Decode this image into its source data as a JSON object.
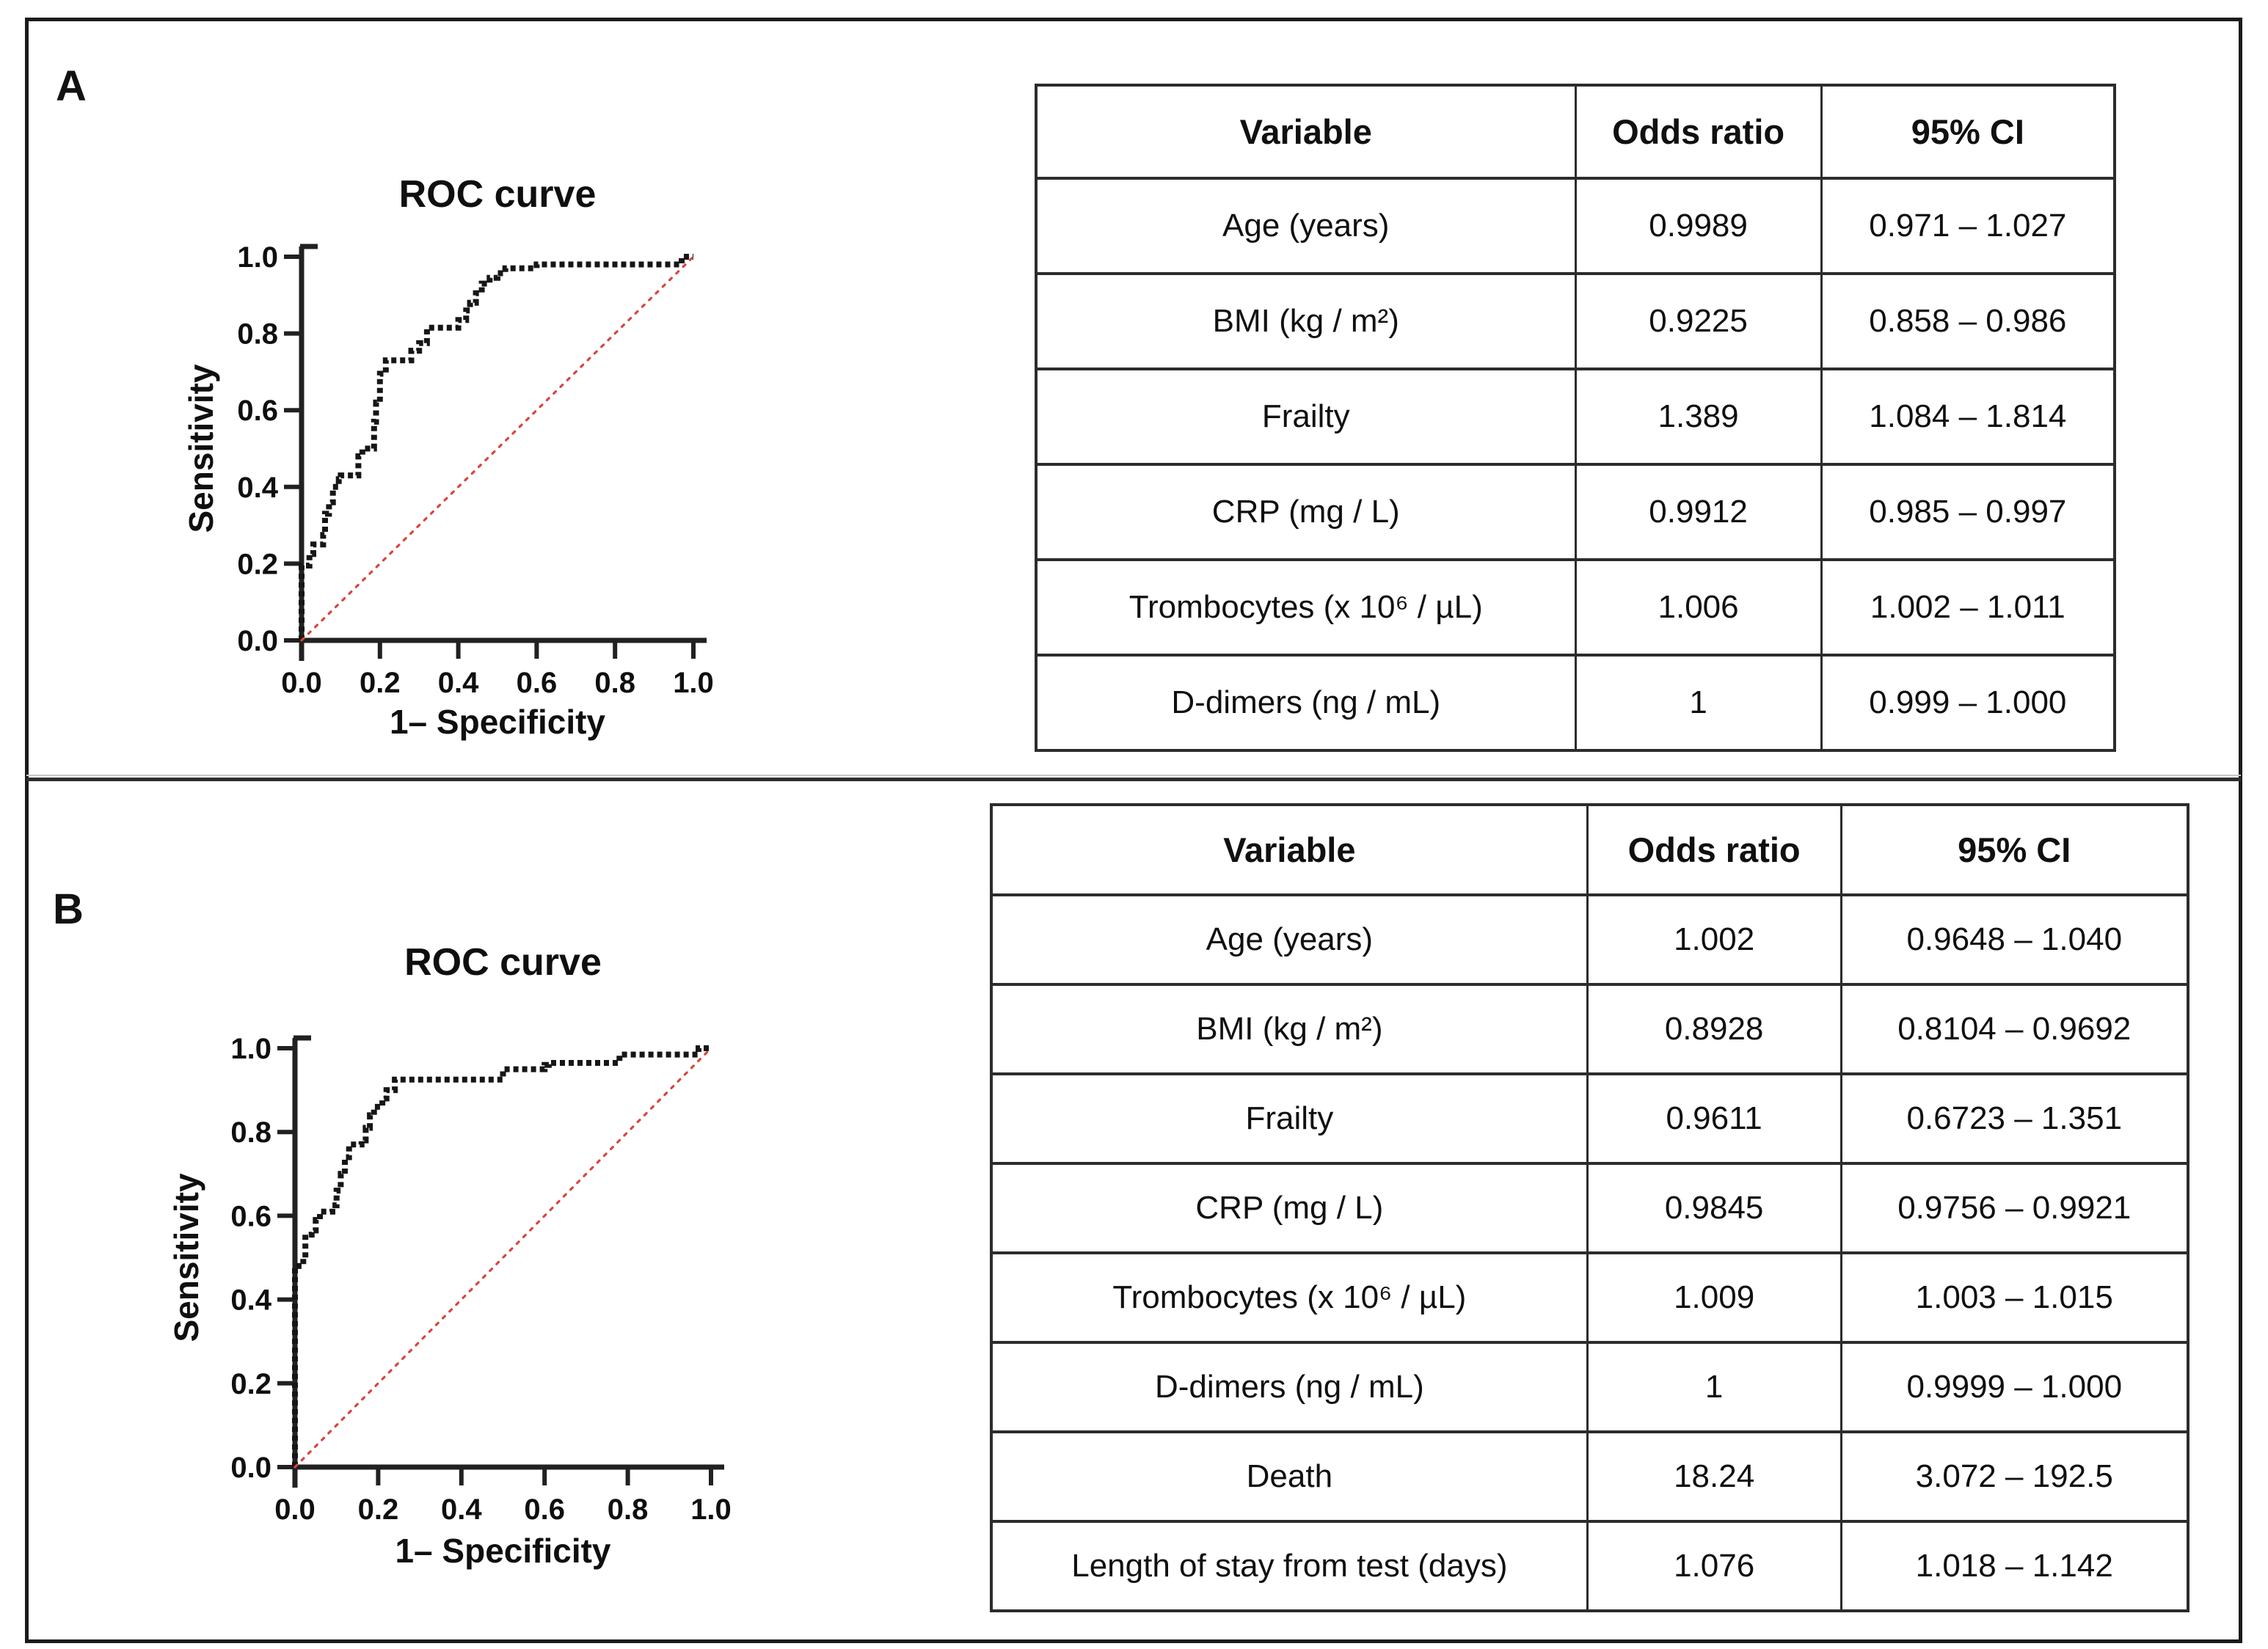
{
  "figure": {
    "panels": [
      {
        "label": "A",
        "table": {
          "headers": [
            "Variable",
            "Odds ratio",
            "95% CI"
          ],
          "rows": [
            [
              "Age (years)",
              "0.9989",
              "0.971 – 1.027"
            ],
            [
              "BMI (kg / m²)",
              "0.9225",
              "0.858 – 0.986"
            ],
            [
              "Frailty",
              "1.389",
              "1.084 – 1.814"
            ],
            [
              "CRP (mg / L)",
              "0.9912",
              "0.985 – 0.997"
            ],
            [
              "Trombocytes (x 10⁶ / µL)",
              "1.006",
              "1.002 – 1.011"
            ],
            [
              "D-dimers (ng / mL)",
              "1",
              "0.999 – 1.000"
            ]
          ]
        }
      },
      {
        "label": "B",
        "table": {
          "headers": [
            "Variable",
            "Odds ratio",
            "95% CI"
          ],
          "rows": [
            [
              "Age (years)",
              "1.002",
              "0.9648 – 1.040"
            ],
            [
              "BMI (kg / m²)",
              "0.8928",
              "0.8104 – 0.9692"
            ],
            [
              "Frailty",
              "0.9611",
              "0.6723 – 1.351"
            ],
            [
              "CRP (mg / L)",
              "0.9845",
              "0.9756 – 0.9921"
            ],
            [
              "Trombocytes (x 10⁶ / µL)",
              "1.009",
              "1.003 – 1.015"
            ],
            [
              "D-dimers (ng / mL)",
              "1",
              "0.9999 – 1.000"
            ],
            [
              "Death",
              "18.24",
              "3.072 – 192.5"
            ],
            [
              "Length of stay from test (days)",
              "1.076",
              "1.018 – 1.142"
            ]
          ]
        }
      }
    ]
  },
  "chart_data": [
    {
      "type": "line",
      "panel": "A",
      "title": "ROC curve",
      "xlabel": "1– Specificity",
      "ylabel": "Sensitivity",
      "xlim": [
        0,
        1
      ],
      "ylim": [
        0,
        1
      ],
      "xtick_labels": [
        "0.0",
        "0.2",
        "0.4",
        "0.6",
        "0.8",
        "1.0"
      ],
      "ytick_labels": [
        "0.0",
        "0.2",
        "0.4",
        "0.6",
        "0.8",
        "1.0"
      ],
      "grid": false,
      "legend": null,
      "series": [
        {
          "name": "ROC staircase",
          "style": "dotted-step",
          "color": "#161616",
          "points": [
            [
              0,
              0
            ],
            [
              0,
              0.195
            ],
            [
              0.02,
              0.195
            ],
            [
              0.02,
              0.225
            ],
            [
              0.03,
              0.225
            ],
            [
              0.03,
              0.25
            ],
            [
              0.055,
              0.25
            ],
            [
              0.055,
              0.275
            ],
            [
              0.06,
              0.275
            ],
            [
              0.06,
              0.33
            ],
            [
              0.07,
              0.33
            ],
            [
              0.07,
              0.36
            ],
            [
              0.08,
              0.36
            ],
            [
              0.08,
              0.4
            ],
            [
              0.095,
              0.4
            ],
            [
              0.095,
              0.42
            ],
            [
              0.1,
              0.42
            ],
            [
              0.1,
              0.43
            ],
            [
              0.145,
              0.43
            ],
            [
              0.145,
              0.48
            ],
            [
              0.155,
              0.48
            ],
            [
              0.155,
              0.5
            ],
            [
              0.185,
              0.5
            ],
            [
              0.185,
              0.57
            ],
            [
              0.19,
              0.57
            ],
            [
              0.19,
              0.62
            ],
            [
              0.2,
              0.62
            ],
            [
              0.2,
              0.695
            ],
            [
              0.215,
              0.695
            ],
            [
              0.215,
              0.73
            ],
            [
              0.28,
              0.73
            ],
            [
              0.28,
              0.755
            ],
            [
              0.3,
              0.755
            ],
            [
              0.3,
              0.775
            ],
            [
              0.32,
              0.775
            ],
            [
              0.32,
              0.815
            ],
            [
              0.4,
              0.815
            ],
            [
              0.4,
              0.835
            ],
            [
              0.42,
              0.835
            ],
            [
              0.42,
              0.86
            ],
            [
              0.43,
              0.86
            ],
            [
              0.43,
              0.88
            ],
            [
              0.445,
              0.88
            ],
            [
              0.445,
              0.905
            ],
            [
              0.46,
              0.905
            ],
            [
              0.46,
              0.93
            ],
            [
              0.48,
              0.93
            ],
            [
              0.48,
              0.945
            ],
            [
              0.5,
              0.945
            ],
            [
              0.5,
              0.957
            ],
            [
              0.52,
              0.957
            ],
            [
              0.52,
              0.97
            ],
            [
              0.6,
              0.97
            ],
            [
              0.6,
              0.98
            ],
            [
              0.97,
              0.98
            ],
            [
              0.97,
              1.0
            ],
            [
              1.0,
              1.0
            ]
          ]
        },
        {
          "name": "chance diagonal",
          "style": "dotted",
          "color": "#d8453e",
          "points": [
            [
              0,
              0
            ],
            [
              1,
              1
            ]
          ]
        }
      ]
    },
    {
      "type": "line",
      "panel": "B",
      "title": "ROC curve",
      "xlabel": "1– Specificity",
      "ylabel": "Sensitivity",
      "xlim": [
        0,
        1
      ],
      "ylim": [
        0,
        1
      ],
      "xtick_labels": [
        "0.0",
        "0.2",
        "0.4",
        "0.6",
        "0.8",
        "1.0"
      ],
      "ytick_labels": [
        "0.0",
        "0.2",
        "0.4",
        "0.6",
        "0.8",
        "1.0"
      ],
      "grid": false,
      "legend": null,
      "series": [
        {
          "name": "ROC staircase",
          "style": "dotted-step",
          "color": "#161616",
          "points": [
            [
              0,
              0
            ],
            [
              0,
              0.48
            ],
            [
              0.02,
              0.48
            ],
            [
              0.02,
              0.5
            ],
            [
              0.025,
              0.5
            ],
            [
              0.025,
              0.555
            ],
            [
              0.04,
              0.555
            ],
            [
              0.04,
              0.565
            ],
            [
              0.05,
              0.565
            ],
            [
              0.05,
              0.59
            ],
            [
              0.06,
              0.59
            ],
            [
              0.06,
              0.61
            ],
            [
              0.09,
              0.61
            ],
            [
              0.09,
              0.625
            ],
            [
              0.1,
              0.625
            ],
            [
              0.1,
              0.66
            ],
            [
              0.11,
              0.66
            ],
            [
              0.11,
              0.7
            ],
            [
              0.12,
              0.7
            ],
            [
              0.12,
              0.74
            ],
            [
              0.13,
              0.74
            ],
            [
              0.13,
              0.77
            ],
            [
              0.16,
              0.77
            ],
            [
              0.16,
              0.78
            ],
            [
              0.17,
              0.78
            ],
            [
              0.17,
              0.81
            ],
            [
              0.18,
              0.81
            ],
            [
              0.18,
              0.84
            ],
            [
              0.19,
              0.84
            ],
            [
              0.19,
              0.86
            ],
            [
              0.21,
              0.86
            ],
            [
              0.21,
              0.88
            ],
            [
              0.22,
              0.88
            ],
            [
              0.22,
              0.9
            ],
            [
              0.24,
              0.9
            ],
            [
              0.24,
              0.925
            ],
            [
              0.5,
              0.925
            ],
            [
              0.5,
              0.95
            ],
            [
              0.6,
              0.95
            ],
            [
              0.6,
              0.96
            ],
            [
              0.61,
              0.96
            ],
            [
              0.61,
              0.965
            ],
            [
              0.78,
              0.965
            ],
            [
              0.78,
              0.985
            ],
            [
              0.97,
              0.985
            ],
            [
              0.97,
              1.0
            ],
            [
              1.0,
              1.0
            ]
          ]
        },
        {
          "name": "chance diagonal",
          "style": "dotted",
          "color": "#d8453e",
          "points": [
            [
              0,
              0
            ],
            [
              1,
              1
            ]
          ]
        }
      ]
    }
  ],
  "colors": {
    "curve": "#161616",
    "diagonal": "#d8453e",
    "axis": "#212121",
    "figure_border": "#1b1b1b",
    "table_border": "#2c2c2c",
    "text": "#0f0f0f"
  }
}
